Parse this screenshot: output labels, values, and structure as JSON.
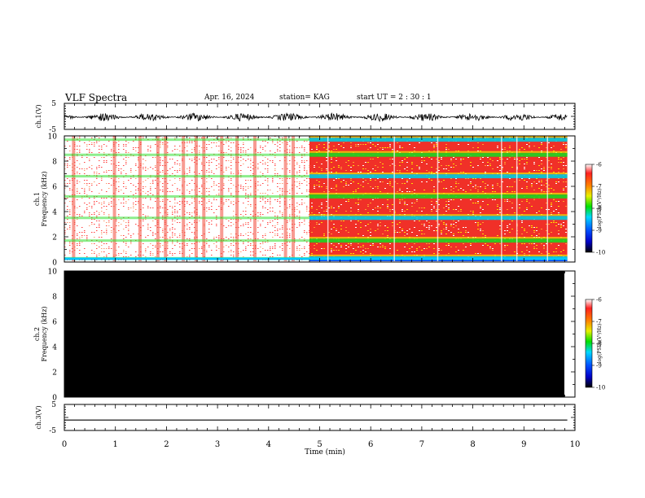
{
  "header": {
    "title": "VLF Spectra",
    "date": "Apr. 16, 2024",
    "station": "station= KAG",
    "start": "start  UT =   2 : 30 : 1"
  },
  "chart_data": [
    {
      "type": "line",
      "panel": "ch1-waveform",
      "ylabel": "ch.1(V)",
      "ylim": [
        -5,
        5
      ],
      "yticks": [
        "5",
        "-5"
      ],
      "xlim": [
        0,
        10
      ],
      "note_values": "noisy waveform around 0 V with amplitude about ±1 V over 0–9.85 min"
    },
    {
      "type": "heatmap",
      "panel": "ch1-spectrogram",
      "ylabel": "ch.1\nFrequency  (kHz)",
      "ylim": [
        0,
        10
      ],
      "yticks": [
        "0",
        "2",
        "4",
        "6",
        "8",
        "10"
      ],
      "xlim": [
        0,
        10
      ],
      "data_end_min": 9.85,
      "colorbar": {
        "label": "log(PSD)(V²/Hz)",
        "range": [
          -10,
          -6
        ],
        "ticks": [
          "-6",
          "-7",
          "-8",
          "-9",
          "-10"
        ]
      },
      "bands_khz": [
        0.3,
        1.7,
        3.5,
        5.2,
        6.8,
        8.5,
        9.7
      ],
      "sparse_until_min": 4.8
    },
    {
      "type": "heatmap",
      "panel": "ch2-spectrogram",
      "ylabel": "ch.2\nFrequency  (kHz)",
      "ylim": [
        0,
        10
      ],
      "yticks": [
        "0",
        "2",
        "4",
        "6",
        "8",
        "10"
      ],
      "xlim": [
        0,
        10
      ],
      "data_end_min": 9.85,
      "fill": "#000000",
      "colorbar": {
        "label": "log(PSD)(V²/Hz)",
        "range": [
          -10,
          -6
        ],
        "ticks": [
          "-6",
          "-7",
          "-8",
          "-9",
          "-10"
        ]
      }
    },
    {
      "type": "line",
      "panel": "ch3-waveform",
      "ylabel": "ch.3(V)",
      "ylim": [
        -5,
        5
      ],
      "yticks": [
        "5",
        "-5"
      ],
      "xlim": [
        0,
        10
      ],
      "value": -1
    }
  ],
  "xaxis": {
    "label": "Time  (min)",
    "ticks": [
      "0",
      "1",
      "2",
      "3",
      "4",
      "5",
      "6",
      "7",
      "8",
      "9",
      "10"
    ]
  },
  "colors": {
    "waveform": "#000000",
    "ch2_fill": "#000000"
  }
}
